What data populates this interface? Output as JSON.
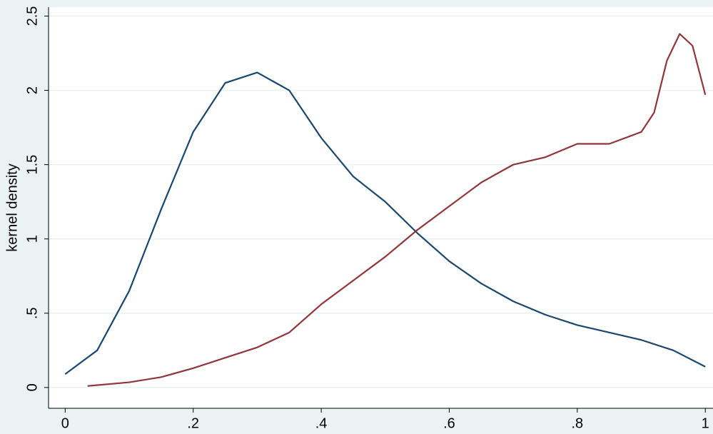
{
  "chart_data": {
    "type": "line",
    "y_label": "kernel density",
    "xlim": [
      -0.026,
      1.012
    ],
    "ylim": [
      -0.14,
      2.56
    ],
    "xticks": [
      0,
      {
        "value": 0.2,
        "label": ".2"
      },
      {
        "value": 0.4,
        "label": ".4"
      },
      {
        "value": 0.6,
        "label": ".6"
      },
      {
        "value": 0.8,
        "label": ".8"
      },
      1
    ],
    "yticks": [
      0,
      {
        "value": 0.5,
        "label": ".5"
      },
      1,
      1.5,
      2,
      2.5
    ],
    "grid": true,
    "series": [
      {
        "color": "#1a476f",
        "x": [
          0,
          0.05,
          0.1,
          0.15,
          0.2,
          0.25,
          0.3,
          0.35,
          0.4,
          0.45,
          0.5,
          0.55,
          0.6,
          0.65,
          0.7,
          0.75,
          0.8,
          0.85,
          0.9,
          0.95,
          1.0
        ],
        "values": [
          0.09,
          0.25,
          0.65,
          1.2,
          1.72,
          2.05,
          2.12,
          2.0,
          1.68,
          1.42,
          1.25,
          1.04,
          0.85,
          0.7,
          0.58,
          0.49,
          0.42,
          0.37,
          0.32,
          0.25,
          0.14
        ]
      },
      {
        "color": "#90353b",
        "x": [
          0.035,
          0.1,
          0.15,
          0.2,
          0.25,
          0.3,
          0.35,
          0.4,
          0.45,
          0.5,
          0.55,
          0.6,
          0.65,
          0.7,
          0.75,
          0.8,
          0.85,
          0.9,
          0.92,
          0.94,
          0.96,
          0.98,
          1.0
        ],
        "values": [
          0.01,
          0.035,
          0.07,
          0.13,
          0.2,
          0.27,
          0.37,
          0.56,
          0.72,
          0.88,
          1.06,
          1.22,
          1.38,
          1.5,
          1.55,
          1.64,
          1.64,
          1.72,
          1.85,
          2.2,
          2.38,
          2.3,
          1.97
        ]
      }
    ]
  }
}
